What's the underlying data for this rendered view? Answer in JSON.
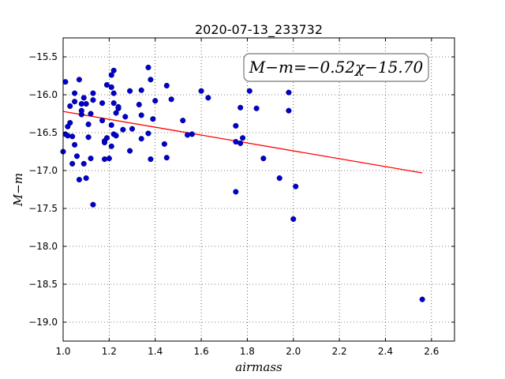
{
  "chart_data": {
    "type": "scatter",
    "title": "2020-07-13_233732",
    "xlabel": "airmass",
    "ylabel": "M−m",
    "xlim": [
      1.0,
      2.7
    ],
    "ylim": [
      -19.25,
      -15.25
    ],
    "y_inverted": true,
    "grid": true,
    "x_ticks": [
      "1.0",
      "1.2",
      "1.4",
      "1.6",
      "1.8",
      "2.0",
      "2.2",
      "2.4",
      "2.6"
    ],
    "y_ticks": [
      "−15.5",
      "−16.0",
      "−16.5",
      "−17.0",
      "−17.5",
      "−18.0",
      "−18.5",
      "−19.0"
    ],
    "annotation": "M−m=−0.52χ−15.70",
    "point_color": "#0000cc",
    "fit_color": "#ff0000",
    "fit": {
      "slope": -0.52,
      "intercept": -15.7,
      "x_range": [
        1.0,
        2.56
      ]
    },
    "points": [
      [
        1.0,
        -16.75
      ],
      [
        1.01,
        -16.52
      ],
      [
        1.01,
        -15.83
      ],
      [
        1.02,
        -16.42
      ],
      [
        1.02,
        -16.54
      ],
      [
        1.03,
        -16.15
      ],
      [
        1.03,
        -16.37
      ],
      [
        1.04,
        -16.55
      ],
      [
        1.04,
        -16.91
      ],
      [
        1.05,
        -16.66
      ],
      [
        1.05,
        -15.98
      ],
      [
        1.05,
        -16.09
      ],
      [
        1.06,
        -16.81
      ],
      [
        1.07,
        -15.8
      ],
      [
        1.07,
        -17.12
      ],
      [
        1.08,
        -16.12
      ],
      [
        1.08,
        -16.26
      ],
      [
        1.08,
        -16.21
      ],
      [
        1.09,
        -16.91
      ],
      [
        1.09,
        -16.04
      ],
      [
        1.1,
        -17.1
      ],
      [
        1.1,
        -16.12
      ],
      [
        1.11,
        -16.39
      ],
      [
        1.11,
        -16.56
      ],
      [
        1.12,
        -16.84
      ],
      [
        1.12,
        -16.25
      ],
      [
        1.13,
        -16.07
      ],
      [
        1.13,
        -15.98
      ],
      [
        1.13,
        -17.45
      ],
      [
        1.17,
        -16.11
      ],
      [
        1.17,
        -16.34
      ],
      [
        1.18,
        -16.61
      ],
      [
        1.18,
        -16.63
      ],
      [
        1.18,
        -16.85
      ],
      [
        1.19,
        -16.57
      ],
      [
        1.19,
        -15.87
      ],
      [
        1.2,
        -16.84
      ],
      [
        1.21,
        -15.74
      ],
      [
        1.21,
        -16.4
      ],
      [
        1.21,
        -16.68
      ],
      [
        1.21,
        -15.9
      ],
      [
        1.22,
        -15.98
      ],
      [
        1.22,
        -15.68
      ],
      [
        1.22,
        -16.11
      ],
      [
        1.22,
        -16.52
      ],
      [
        1.23,
        -16.54
      ],
      [
        1.23,
        -16.24
      ],
      [
        1.24,
        -16.18
      ],
      [
        1.24,
        -16.16
      ],
      [
        1.26,
        -16.46
      ],
      [
        1.27,
        -16.29
      ],
      [
        1.29,
        -16.74
      ],
      [
        1.29,
        -15.95
      ],
      [
        1.3,
        -16.45
      ],
      [
        1.33,
        -16.13
      ],
      [
        1.34,
        -16.27
      ],
      [
        1.34,
        -16.58
      ],
      [
        1.34,
        -15.94
      ],
      [
        1.37,
        -16.51
      ],
      [
        1.37,
        -15.64
      ],
      [
        1.38,
        -15.8
      ],
      [
        1.38,
        -16.85
      ],
      [
        1.39,
        -16.32
      ],
      [
        1.4,
        -16.08
      ],
      [
        1.44,
        -16.65
      ],
      [
        1.45,
        -15.88
      ],
      [
        1.45,
        -16.83
      ],
      [
        1.47,
        -16.06
      ],
      [
        1.52,
        -16.34
      ],
      [
        1.54,
        -16.53
      ],
      [
        1.56,
        -16.52
      ],
      [
        1.6,
        -15.95
      ],
      [
        1.63,
        -16.04
      ],
      [
        1.75,
        -16.41
      ],
      [
        1.75,
        -16.62
      ],
      [
        1.75,
        -17.28
      ],
      [
        1.77,
        -16.17
      ],
      [
        1.77,
        -16.64
      ],
      [
        1.78,
        -16.57
      ],
      [
        1.81,
        -15.95
      ],
      [
        1.84,
        -16.18
      ],
      [
        1.87,
        -16.84
      ],
      [
        1.94,
        -17.1
      ],
      [
        1.98,
        -15.97
      ],
      [
        1.98,
        -16.21
      ],
      [
        2.0,
        -17.64
      ],
      [
        2.01,
        -17.21
      ],
      [
        2.56,
        -18.7
      ]
    ]
  }
}
